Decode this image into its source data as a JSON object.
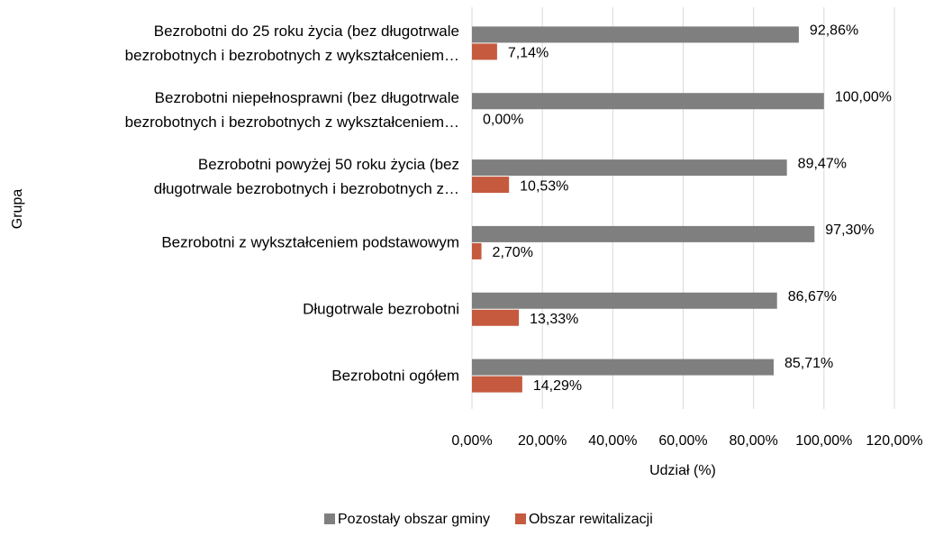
{
  "chart_data": {
    "type": "hbar",
    "categories": [
      "Bezrobotni do 25 roku życia (bez długotrwale\nbezrobotnych i bezrobotnych z wykształceniem…",
      "Bezrobotni niepełnosprawni (bez długotrwale\nbezrobotnych i bezrobotnych z wykształceniem…",
      "Bezrobotni powyżej 50 roku życia (bez\ndługotrwale bezrobotnych i bezrobotnych z…",
      "Bezrobotni z wykształceniem podstawowym",
      "Długotrwale bezrobotni",
      "Bezrobotni ogółem"
    ],
    "series": [
      {
        "name": "Pozostały obszar gminy",
        "color": "#7f7f7f",
        "values": [
          92.86,
          100,
          89.47,
          97.3,
          86.67,
          85.71
        ],
        "value_labels": [
          "92,86%",
          "100,00%",
          "89,47%",
          "97,30%",
          "86,67%",
          "85,71%"
        ]
      },
      {
        "name": "Obszar rewitalizacji",
        "color": "#c55a3f",
        "values": [
          7.14,
          0,
          10.53,
          2.7,
          13.33,
          14.29
        ],
        "value_labels": [
          "7,14%",
          "0,00%",
          "10,53%",
          "2,70%",
          "13,33%",
          "14,29%"
        ]
      }
    ],
    "xlim": [
      0,
      120
    ],
    "xticks": [
      {
        "value": 0,
        "label": "0,00%"
      },
      {
        "value": 20,
        "label": "20,00%"
      },
      {
        "value": 40,
        "label": "40,00%"
      },
      {
        "value": 60,
        "label": "60,00%"
      },
      {
        "value": 80,
        "label": "80,00%"
      },
      {
        "value": 100,
        "label": "100,00%"
      },
      {
        "value": 120,
        "label": "120,00%"
      }
    ],
    "xlabel": "Udział (%)",
    "ylabel": "Grupa",
    "grid": true,
    "legend": "bottom"
  }
}
